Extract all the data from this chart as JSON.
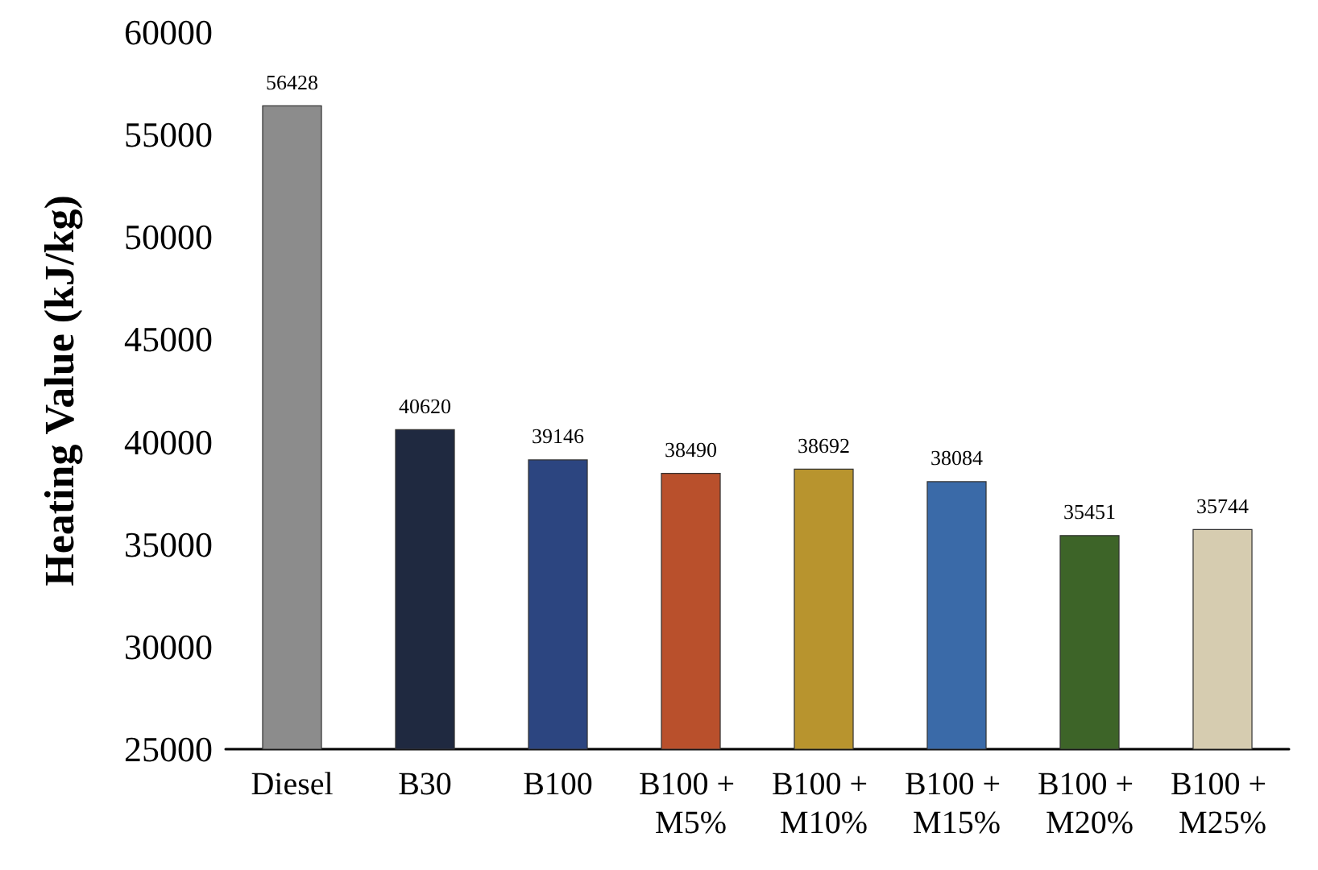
{
  "chart_data": {
    "type": "bar",
    "ylabel": "Heating Value (kJ/kg)",
    "categories": [
      "Diesel",
      "B30",
      "B100",
      "B100 + M5%",
      "B100 + M10%",
      "B100 + M15%",
      "B100 + M20%",
      "B100 + M25%"
    ],
    "values": [
      56428,
      40620,
      39146,
      38490,
      38692,
      38084,
      35451,
      35744
    ],
    "colors": [
      "#8c8c8c",
      "#1f2940",
      "#2c4580",
      "#b9502c",
      "#b8942e",
      "#3a6aa8",
      "#3d6428",
      "#d6ccb0"
    ],
    "ylim": [
      25000,
      60000
    ],
    "yticks": [
      25000,
      30000,
      35000,
      40000,
      45000,
      50000,
      55000,
      60000
    ],
    "data_labels": true,
    "grid": false
  }
}
